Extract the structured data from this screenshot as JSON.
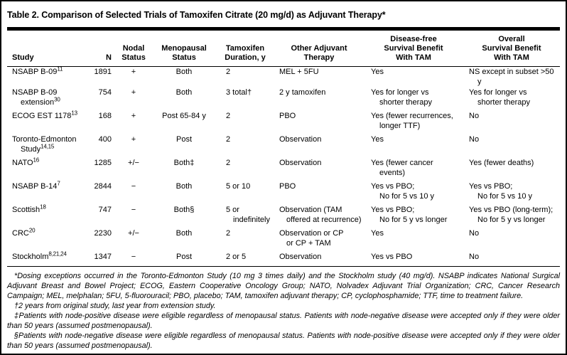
{
  "title": "Table 2. Comparison of Selected Trials of Tamoxifen Citrate (20 mg/d) as Adjuvant Therapy*",
  "colors": {
    "background": "#ffffff",
    "text": "#000000",
    "rules": "#000000"
  },
  "table": {
    "columns": [
      {
        "key": "study",
        "label": "Study"
      },
      {
        "key": "n",
        "label": "N"
      },
      {
        "key": "nodal",
        "label": "Nodal\nStatus"
      },
      {
        "key": "meno",
        "label": "Menopausal\nStatus"
      },
      {
        "key": "duration",
        "label": "Tamoxifen\nDuration, y"
      },
      {
        "key": "other",
        "label": "Other Adjuvant\nTherapy"
      },
      {
        "key": "dfs",
        "label": "Disease-free\nSurvival Benefit\nWith TAM"
      },
      {
        "key": "os",
        "label": "Overall\nSurvival Benefit\nWith TAM"
      }
    ],
    "rows": [
      {
        "study": "NSABP B-09^{11}",
        "n": "1891",
        "nodal": "+",
        "meno": "Both",
        "duration": "2",
        "other": "MEL + 5FU",
        "dfs": "Yes",
        "os": "NS except in subset >50 y"
      },
      {
        "study": "NSABP B-09\nextension^{30}",
        "n": "754",
        "nodal": "+",
        "meno": "Both",
        "duration": "3 total†",
        "other": "2 y tamoxifen",
        "dfs": "Yes for longer vs\nshorter therapy",
        "os": "Yes for longer vs\nshorter therapy"
      },
      {
        "study": "ECOG EST 1178^{13}",
        "n": "168",
        "nodal": "+",
        "meno": "Post 65-84 y",
        "duration": "2",
        "other": "PBO",
        "dfs": "Yes (fewer recurrences,\nlonger TTF)",
        "os": "No"
      },
      {
        "study": "Toronto-Edmonton\nStudy^{14,15}",
        "n": "400",
        "nodal": "+",
        "meno": "Post",
        "duration": "2",
        "other": "Observation",
        "dfs": "Yes",
        "os": "No"
      },
      {
        "study": "NATO^{16}",
        "n": "1285",
        "nodal": "+/−",
        "meno": "Both‡",
        "duration": "2",
        "other": "Observation",
        "dfs": "Yes (fewer cancer\nevents)",
        "os": "Yes (fewer deaths)"
      },
      {
        "study": "NSABP B-14^{7}",
        "n": "2844",
        "nodal": "−",
        "meno": "Both",
        "duration": "5 or 10",
        "other": "PBO",
        "dfs": "Yes vs PBO;\nNo for 5 vs 10 y",
        "os": "Yes vs PBO;\nNo for 5 vs 10 y"
      },
      {
        "study": "Scottish^{18}",
        "n": "747",
        "nodal": "−",
        "meno": "Both§",
        "duration": "5 or\nindefinitely",
        "other": "Observation (TAM\noffered at recurrence)",
        "dfs": "Yes vs PBO;\nNo for 5 y vs longer",
        "os": "Yes vs PBO (long-term);\nNo for 5 y vs longer"
      },
      {
        "study": "CRC^{20}",
        "n": "2230",
        "nodal": "+/−",
        "meno": "Both",
        "duration": "2",
        "other": "Observation or CP\nor CP + TAM",
        "dfs": "Yes",
        "os": "No"
      },
      {
        "study": "Stockholm^{8,21,24}",
        "n": "1347",
        "nodal": "−",
        "meno": "Post",
        "duration": "2 or 5",
        "other": "Observation",
        "dfs": "Yes vs PBO",
        "os": "No"
      }
    ]
  },
  "footnotes": [
    "*Dosing exceptions occurred in the Toronto-Edmonton Study (10 mg 3 times daily) and the Stockholm study (40 mg/d). NSABP indicates National Surgical Adjuvant Breast and Bowel Project; ECOG, Eastern Cooperative Oncology Group; NATO, Nolvadex Adjuvant Trial Organization; CRC, Cancer Research Campaign; MEL, melphalan; 5FU, 5-fluorouracil; PBO, placebo; TAM, tamoxifen adjuvant therapy; CP, cyclophosphamide; TTF, time to treatment failure.",
    "†2 years from original study, last year from extension study.",
    "‡Patients with node-positive disease were eligible regardless of menopausal status. Patients with node-negative disease were accepted only if they were older than 50 years (assumed postmenopausal).",
    "§Patients with node-negative disease were eligible regardless of menopausal status. Patients with node-positive disease were accepted only if they were older than 50 years (assumed postmenopausal)."
  ]
}
